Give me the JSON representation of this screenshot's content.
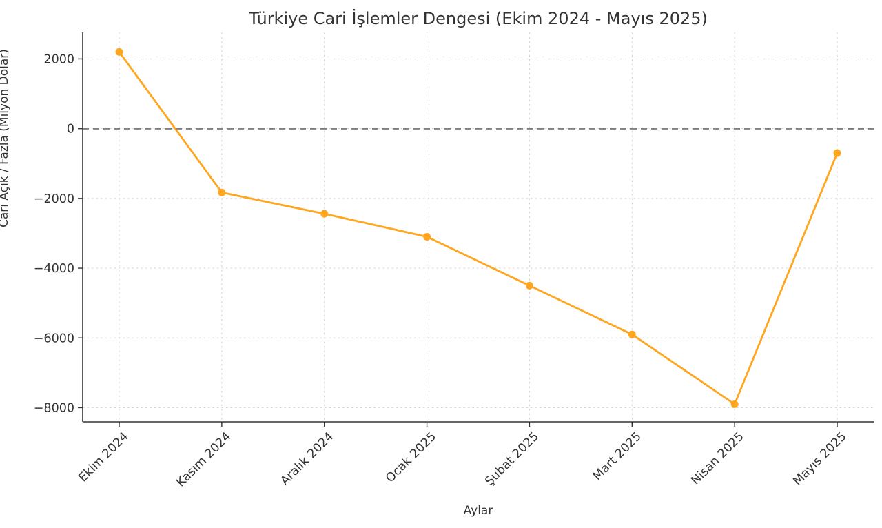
{
  "chart_data": {
    "type": "line",
    "title": "Türkiye Cari İşlemler Dengesi (Ekim 2024 - Mayıs 2025)",
    "xlabel": "Aylar",
    "ylabel": "Cari Açık / Fazla (Milyon Dolar)",
    "categories": [
      "Ekim 2024",
      "Kasım 2024",
      "Aralık 2024",
      "Ocak 2025",
      "Şubat 2025",
      "Mart 2025",
      "Nisan 2025",
      "Mayıs 2025"
    ],
    "series": [
      {
        "name": "Cari İşlemler Dengesi",
        "values": [
          2200,
          -1830,
          -2440,
          -3100,
          -4500,
          -5900,
          -7900,
          -700
        ]
      }
    ],
    "yticks": [
      2000,
      0,
      -2000,
      -4000,
      -6000,
      -8000
    ],
    "ylim": [
      -8406,
      2760
    ],
    "grid": true,
    "grid_style": "dashed",
    "zero_line": true,
    "legend": "none",
    "x_tick_rotation_deg": 45,
    "colors": {
      "line": "#FFA51E",
      "marker": "#FFA51E",
      "zero_line": "#7f7f7f",
      "grid": "#d3d3d3",
      "text": "#333333",
      "spine": "#333333",
      "background": "#ffffff"
    }
  }
}
